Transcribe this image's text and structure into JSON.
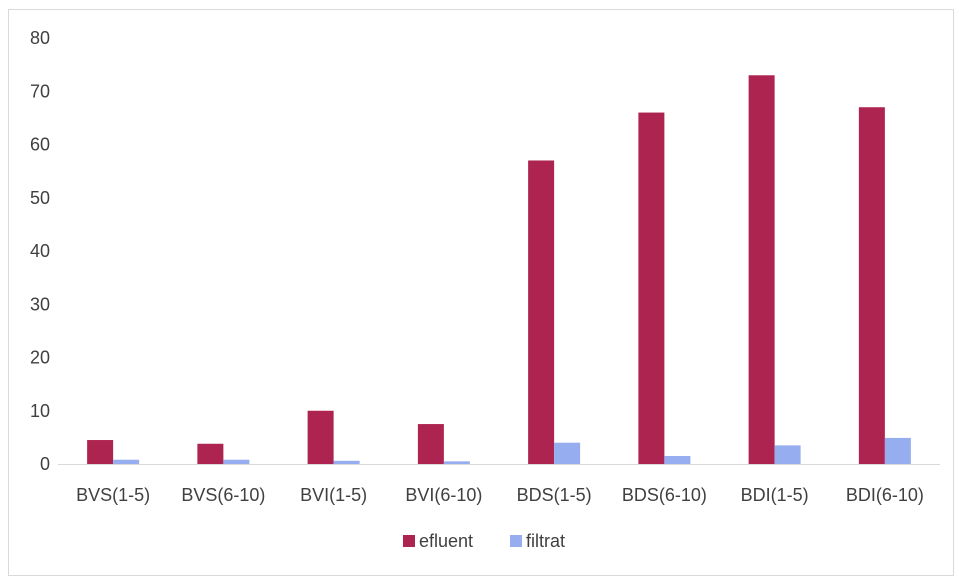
{
  "chart_data": {
    "type": "bar",
    "categories": [
      "BVS(1-5)",
      "BVS(6-10)",
      "BVI(1-5)",
      "BVI(6-10)",
      "BDS(1-5)",
      "BDS(6-10)",
      "BDI(1-5)",
      "BDI(6-10)"
    ],
    "series": [
      {
        "name": "efluent",
        "color": "#ad2450",
        "values": [
          4.5,
          3.8,
          10,
          7.5,
          57,
          66,
          73,
          67
        ]
      },
      {
        "name": "filtrat",
        "color": "#96aef0",
        "values": [
          0.8,
          0.8,
          0.6,
          0.5,
          4,
          1.5,
          3.5,
          4.9
        ]
      }
    ],
    "title": "",
    "xlabel": "",
    "ylabel": "",
    "ylim": [
      0,
      80
    ],
    "yticks": [
      0,
      10,
      20,
      30,
      40,
      50,
      60,
      70,
      80
    ],
    "grid": false,
    "legend_position": "bottom",
    "axis_color": "#d9d9d9"
  }
}
